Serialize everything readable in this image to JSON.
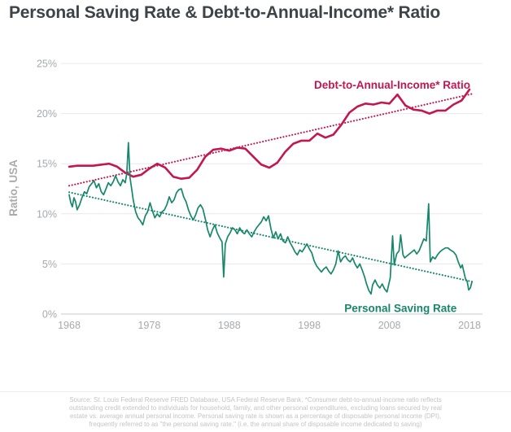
{
  "page": {
    "title": "Personal Saving Rate & Debt-to-Annual-Income* Ratio"
  },
  "footer": {
    "source_note": "Source: St. Louis Federal Reserve FRED Database, USA Federal Reserve Bank.  *Consumer debt-to-annual-income ratio reflects outstanding credit extended to individuals for household, family, and other personal expenditures, excluding loans secured by real estate vs. average annual personal income. Personal saving rate is shown as a percentage of disposable personal income (DPI), frequently referred to as \"the personal saving rate.\" (i.e. the annual share of disposable income dedicated to saving)"
  },
  "chart_data": {
    "type": "line",
    "title": "Personal Saving Rate & Debt-to-Annual-Income* Ratio",
    "xlabel": "",
    "ylabel": "Ratio, USA",
    "xlim": [
      1968,
      2018
    ],
    "ylim": [
      0,
      25
    ],
    "grid": "horizontal",
    "legend_position": "inline-labels",
    "x_ticks": [
      {
        "v": 1968,
        "label": "1968"
      },
      {
        "v": 1978,
        "label": "1978"
      },
      {
        "v": 1988,
        "label": "1988"
      },
      {
        "v": 1998,
        "label": "1998"
      },
      {
        "v": 2008,
        "label": "2008"
      },
      {
        "v": 2018,
        "label": "2018"
      }
    ],
    "y_ticks": [
      {
        "v": 0,
        "label": "0%"
      },
      {
        "v": 5,
        "label": "5%"
      },
      {
        "v": 10,
        "label": "10%"
      },
      {
        "v": 15,
        "label": "15%"
      },
      {
        "v": 20,
        "label": "20%"
      },
      {
        "v": 25,
        "label": "25%"
      }
    ],
    "style": {
      "grid_color": "#e8e8e9",
      "axis_line_color": "#c9cbcd",
      "axis_text_color": "#a6aaad",
      "ylabel_color": "#a8abae"
    },
    "series": [
      {
        "name": "Debt-to-Annual-Income* Ratio",
        "color": "#c2174f",
        "style": "solid",
        "width": 2.6,
        "label": {
          "x": 2018.1,
          "y": 22.5,
          "anchor": "end"
        },
        "points": [
          [
            1968,
            14.7
          ],
          [
            1969,
            14.8
          ],
          [
            1970,
            14.8
          ],
          [
            1971,
            14.8
          ],
          [
            1972,
            14.9
          ],
          [
            1973,
            15.0
          ],
          [
            1974,
            14.7
          ],
          [
            1975,
            14.1
          ],
          [
            1976,
            13.7
          ],
          [
            1977,
            13.9
          ],
          [
            1978,
            14.5
          ],
          [
            1979,
            15.0
          ],
          [
            1980,
            14.6
          ],
          [
            1981,
            13.7
          ],
          [
            1982,
            13.5
          ],
          [
            1983,
            13.6
          ],
          [
            1984,
            14.4
          ],
          [
            1985,
            15.7
          ],
          [
            1986,
            16.4
          ],
          [
            1987,
            16.5
          ],
          [
            1988,
            16.3
          ],
          [
            1989,
            16.6
          ],
          [
            1990,
            16.5
          ],
          [
            1991,
            15.7
          ],
          [
            1992,
            14.9
          ],
          [
            1993,
            14.6
          ],
          [
            1994,
            15.1
          ],
          [
            1995,
            16.2
          ],
          [
            1996,
            17.0
          ],
          [
            1997,
            17.3
          ],
          [
            1998,
            17.3
          ],
          [
            1999,
            18.0
          ],
          [
            2000,
            17.6
          ],
          [
            2001,
            17.9
          ],
          [
            2002,
            18.9
          ],
          [
            2003,
            20.1
          ],
          [
            2004,
            20.7
          ],
          [
            2005,
            21.0
          ],
          [
            2006,
            20.9
          ],
          [
            2007,
            21.1
          ],
          [
            2008,
            21.0
          ],
          [
            2009,
            21.9
          ],
          [
            2010,
            20.8
          ],
          [
            2011,
            20.4
          ],
          [
            2012,
            20.3
          ],
          [
            2013,
            20.0
          ],
          [
            2014,
            20.3
          ],
          [
            2015,
            20.3
          ],
          [
            2016,
            20.9
          ],
          [
            2017,
            21.3
          ],
          [
            2018,
            22.4
          ]
        ]
      },
      {
        "name": "Personal Saving Rate",
        "color": "#17876b",
        "style": "solid",
        "width": 1.7,
        "label": {
          "x": 2016.4,
          "y": 0.2,
          "anchor": "end"
        },
        "points": [
          [
            1968.0,
            11.9
          ],
          [
            1968.2,
            11.1
          ],
          [
            1968.4,
            10.7
          ],
          [
            1968.6,
            11.6
          ],
          [
            1968.8,
            11.2
          ],
          [
            1969.0,
            10.4
          ],
          [
            1969.3,
            10.9
          ],
          [
            1969.6,
            11.6
          ],
          [
            1969.9,
            12.2
          ],
          [
            1970.2,
            12.0
          ],
          [
            1970.5,
            12.7
          ],
          [
            1970.8,
            13.0
          ],
          [
            1971.1,
            13.3
          ],
          [
            1971.4,
            12.6
          ],
          [
            1971.7,
            13.0
          ],
          [
            1972.0,
            12.2
          ],
          [
            1972.3,
            11.9
          ],
          [
            1972.6,
            12.5
          ],
          [
            1972.9,
            13.1
          ],
          [
            1973.2,
            12.8
          ],
          [
            1973.5,
            13.2
          ],
          [
            1973.8,
            13.8
          ],
          [
            1974.1,
            13.2
          ],
          [
            1974.4,
            12.8
          ],
          [
            1974.7,
            13.4
          ],
          [
            1975.0,
            13.1
          ],
          [
            1975.2,
            14.0
          ],
          [
            1975.4,
            17.1
          ],
          [
            1975.6,
            13.6
          ],
          [
            1975.8,
            12.5
          ],
          [
            1976.0,
            11.4
          ],
          [
            1976.3,
            10.2
          ],
          [
            1976.6,
            9.6
          ],
          [
            1976.9,
            9.3
          ],
          [
            1977.2,
            8.9
          ],
          [
            1977.5,
            9.8
          ],
          [
            1977.8,
            10.2
          ],
          [
            1978.1,
            11.1
          ],
          [
            1978.4,
            10.3
          ],
          [
            1978.7,
            9.6
          ],
          [
            1979.0,
            10.0
          ],
          [
            1979.3,
            9.7
          ],
          [
            1979.6,
            10.2
          ],
          [
            1979.9,
            10.4
          ],
          [
            1980.2,
            10.9
          ],
          [
            1980.5,
            11.7
          ],
          [
            1980.8,
            11.1
          ],
          [
            1981.1,
            11.4
          ],
          [
            1981.4,
            12.1
          ],
          [
            1981.7,
            12.4
          ],
          [
            1982.0,
            12.5
          ],
          [
            1982.3,
            11.7
          ],
          [
            1982.6,
            11.2
          ],
          [
            1982.9,
            10.4
          ],
          [
            1983.2,
            9.8
          ],
          [
            1983.5,
            9.4
          ],
          [
            1983.8,
            9.9
          ],
          [
            1984.1,
            10.6
          ],
          [
            1984.4,
            10.9
          ],
          [
            1984.7,
            10.5
          ],
          [
            1985.0,
            9.5
          ],
          [
            1985.3,
            8.4
          ],
          [
            1985.6,
            7.7
          ],
          [
            1985.9,
            8.4
          ],
          [
            1986.2,
            8.9
          ],
          [
            1986.5,
            8.1
          ],
          [
            1986.8,
            7.6
          ],
          [
            1987.1,
            7.2
          ],
          [
            1987.3,
            3.7
          ],
          [
            1987.5,
            7.0
          ],
          [
            1987.8,
            7.7
          ],
          [
            1988.1,
            8.1
          ],
          [
            1988.4,
            8.6
          ],
          [
            1988.7,
            8.4
          ],
          [
            1989.0,
            8.0
          ],
          [
            1989.3,
            8.6
          ],
          [
            1989.6,
            8.2
          ],
          [
            1989.9,
            8.0
          ],
          [
            1990.2,
            8.4
          ],
          [
            1990.5,
            8.0
          ],
          [
            1990.8,
            7.7
          ],
          [
            1991.1,
            8.2
          ],
          [
            1991.4,
            8.6
          ],
          [
            1991.7,
            8.9
          ],
          [
            1992.0,
            9.2
          ],
          [
            1992.3,
            9.7
          ],
          [
            1992.6,
            9.3
          ],
          [
            1992.9,
            9.8
          ],
          [
            1993.2,
            8.5
          ],
          [
            1993.5,
            7.6
          ],
          [
            1993.8,
            8.2
          ],
          [
            1994.1,
            7.5
          ],
          [
            1994.4,
            8.0
          ],
          [
            1994.7,
            7.3
          ],
          [
            1995.0,
            7.1
          ],
          [
            1995.3,
            7.7
          ],
          [
            1995.6,
            7.1
          ],
          [
            1995.9,
            6.7
          ],
          [
            1996.2,
            6.2
          ],
          [
            1996.5,
            5.9
          ],
          [
            1996.8,
            6.4
          ],
          [
            1997.1,
            6.2
          ],
          [
            1997.4,
            6.6
          ],
          [
            1997.7,
            7.0
          ],
          [
            1998.0,
            6.5
          ],
          [
            1998.3,
            6.1
          ],
          [
            1998.6,
            5.3
          ],
          [
            1998.9,
            4.8
          ],
          [
            1999.2,
            4.5
          ],
          [
            1999.5,
            4.2
          ],
          [
            1999.8,
            4.5
          ],
          [
            2000.1,
            4.7
          ],
          [
            2000.4,
            4.3
          ],
          [
            2000.7,
            4.0
          ],
          [
            2001.0,
            4.4
          ],
          [
            2001.3,
            5.0
          ],
          [
            2001.6,
            6.3
          ],
          [
            2001.9,
            5.2
          ],
          [
            2002.2,
            5.6
          ],
          [
            2002.5,
            5.8
          ],
          [
            2002.8,
            5.4
          ],
          [
            2003.1,
            5.2
          ],
          [
            2003.4,
            5.6
          ],
          [
            2003.7,
            5.0
          ],
          [
            2004.0,
            4.6
          ],
          [
            2004.3,
            5.0
          ],
          [
            2004.6,
            4.4
          ],
          [
            2004.9,
            3.7
          ],
          [
            2005.1,
            3.1
          ],
          [
            2005.4,
            2.4
          ],
          [
            2005.7,
            2.0
          ],
          [
            2005.9,
            2.9
          ],
          [
            2006.2,
            3.4
          ],
          [
            2006.5,
            2.9
          ],
          [
            2006.8,
            2.6
          ],
          [
            2007.1,
            3.0
          ],
          [
            2007.4,
            2.5
          ],
          [
            2007.7,
            2.2
          ],
          [
            2007.9,
            2.9
          ],
          [
            2008.1,
            3.6
          ],
          [
            2008.4,
            7.8
          ],
          [
            2008.6,
            4.9
          ],
          [
            2008.9,
            6.0
          ],
          [
            2009.2,
            6.3
          ],
          [
            2009.4,
            7.9
          ],
          [
            2009.7,
            5.9
          ],
          [
            2009.9,
            5.6
          ],
          [
            2010.2,
            5.8
          ],
          [
            2010.5,
            6.0
          ],
          [
            2010.8,
            6.2
          ],
          [
            2011.1,
            6.4
          ],
          [
            2011.4,
            6.0
          ],
          [
            2011.7,
            6.3
          ],
          [
            2012.0,
            6.9
          ],
          [
            2012.3,
            7.5
          ],
          [
            2012.6,
            7.3
          ],
          [
            2012.9,
            11.0
          ],
          [
            2013.1,
            5.2
          ],
          [
            2013.4,
            5.7
          ],
          [
            2013.7,
            5.5
          ],
          [
            2014.0,
            5.9
          ],
          [
            2014.3,
            6.2
          ],
          [
            2014.6,
            6.4
          ],
          [
            2015.0,
            6.6
          ],
          [
            2015.3,
            6.6
          ],
          [
            2015.6,
            6.4
          ],
          [
            2016.0,
            6.2
          ],
          [
            2016.3,
            5.9
          ],
          [
            2016.6,
            5.2
          ],
          [
            2016.9,
            4.6
          ],
          [
            2017.1,
            4.9
          ],
          [
            2017.3,
            4.2
          ],
          [
            2017.5,
            3.5
          ],
          [
            2017.7,
            3.3
          ],
          [
            2017.9,
            2.4
          ],
          [
            2018.1,
            2.6
          ],
          [
            2018.3,
            3.2
          ]
        ]
      },
      {
        "name": "Debt-to-Annual-Income Trendline",
        "color": "#c2174f",
        "style": "dotted",
        "width": 2.1,
        "label": null,
        "points": [
          [
            1968,
            12.8
          ],
          [
            2018.5,
            22.0
          ]
        ]
      },
      {
        "name": "Personal Saving Rate Trendline",
        "color": "#17876b",
        "style": "dotted",
        "width": 2.1,
        "label": null,
        "points": [
          [
            1968,
            12.15
          ],
          [
            2018.5,
            3.2
          ]
        ]
      }
    ]
  }
}
